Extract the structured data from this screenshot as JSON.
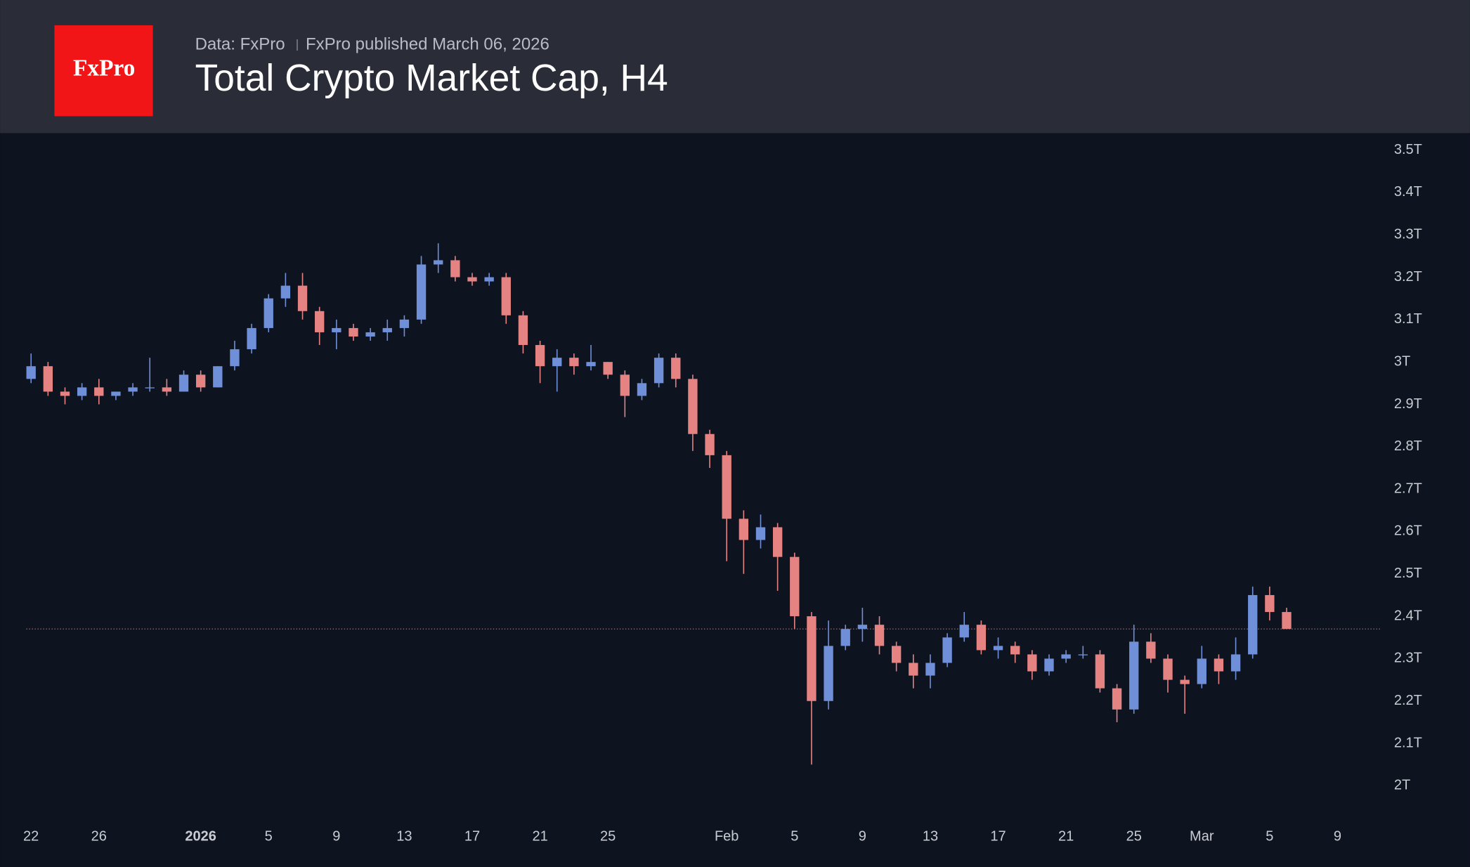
{
  "chart_data": {
    "type": "candlestick",
    "logo": "FxPro",
    "source": "Data: FxPro",
    "published": "FxPro published March 06, 2026",
    "title": "Total Crypto Market Cap, H4",
    "up_color": "#6f8fd8",
    "down_color": "#e58383",
    "price_line": 2.37,
    "ylim": [
      1.93,
      3.54
    ],
    "yticks": [
      {
        "value": 2,
        "label": "2T"
      },
      {
        "value": 2.1,
        "label": "2.1T"
      },
      {
        "value": 2.2,
        "label": "2.2T"
      },
      {
        "value": 2.3,
        "label": "2.3T"
      },
      {
        "value": 2.4,
        "label": "2.4T"
      },
      {
        "value": 2.5,
        "label": "2.5T"
      },
      {
        "value": 2.6,
        "label": "2.6T"
      },
      {
        "value": 2.7,
        "label": "2.7T"
      },
      {
        "value": 2.8,
        "label": "2.8T"
      },
      {
        "value": 2.9,
        "label": "2.9T"
      },
      {
        "value": 3,
        "label": "3T"
      },
      {
        "value": 3.1,
        "label": "3.1T"
      },
      {
        "value": 3.2,
        "label": "3.2T"
      },
      {
        "value": 3.3,
        "label": "3.3T"
      },
      {
        "value": 3.4,
        "label": "3.4T"
      },
      {
        "value": 3.5,
        "label": "3.5T"
      }
    ],
    "categories": [
      "22",
      null,
      null,
      null,
      "26",
      null,
      null,
      null,
      null,
      null,
      "2026",
      null,
      null,
      null,
      "5",
      null,
      null,
      null,
      "9",
      null,
      null,
      null,
      "13",
      null,
      null,
      null,
      "17",
      null,
      null,
      null,
      "21",
      null,
      null,
      null,
      "25",
      null,
      null,
      null,
      null,
      null,
      null,
      "Feb",
      null,
      null,
      null,
      "5",
      null,
      null,
      null,
      "9",
      null,
      null,
      null,
      "13",
      null,
      null,
      null,
      "17",
      null,
      null,
      null,
      "21",
      null,
      null,
      null,
      "25",
      null,
      null,
      null,
      "Mar",
      null,
      null,
      null,
      "5",
      null,
      null,
      null,
      "9"
    ],
    "open": [
      2.96,
      2.99,
      2.93,
      2.92,
      2.94,
      2.92,
      2.93,
      2.94,
      2.94,
      2.93,
      2.97,
      2.94,
      2.99,
      3.03,
      3.08,
      3.15,
      3.18,
      3.12,
      3.07,
      3.08,
      3.06,
      3.07,
      3.08,
      3.1,
      3.23,
      3.24,
      3.2,
      3.19,
      3.2,
      3.11,
      3.04,
      2.99,
      3.01,
      2.99,
      3.0,
      2.97,
      2.92,
      2.95,
      3.01,
      2.96,
      2.83,
      2.78,
      2.63,
      2.58,
      2.61,
      2.54,
      2.4,
      2.2,
      2.33,
      2.37,
      2.38,
      2.33,
      2.29,
      2.26,
      2.29,
      2.35,
      2.38,
      2.32,
      2.33,
      2.31,
      2.27,
      2.3,
      2.31,
      2.31,
      2.23,
      2.18,
      2.34,
      2.3,
      2.25,
      2.24,
      2.3,
      2.27,
      2.31,
      2.45,
      2.41,
      null,
      null,
      null
    ],
    "high": [
      3.02,
      3.0,
      2.94,
      2.95,
      2.96,
      2.93,
      2.95,
      3.01,
      2.96,
      2.98,
      2.98,
      2.99,
      3.05,
      3.09,
      3.16,
      3.21,
      3.21,
      3.13,
      3.1,
      3.09,
      3.08,
      3.1,
      3.11,
      3.25,
      3.28,
      3.25,
      3.21,
      3.21,
      3.21,
      3.12,
      3.05,
      3.03,
      3.02,
      3.04,
      3.0,
      2.98,
      2.96,
      3.02,
      3.02,
      2.97,
      2.84,
      2.79,
      2.65,
      2.64,
      2.62,
      2.55,
      2.41,
      2.39,
      2.38,
      2.42,
      2.4,
      2.34,
      2.31,
      2.31,
      2.36,
      2.41,
      2.39,
      2.35,
      2.34,
      2.32,
      2.31,
      2.32,
      2.33,
      2.32,
      2.24,
      2.38,
      2.36,
      2.31,
      2.26,
      2.33,
      2.31,
      2.35,
      2.47,
      2.47,
      2.42,
      null,
      null,
      null
    ],
    "low": [
      2.95,
      2.92,
      2.9,
      2.91,
      2.9,
      2.91,
      2.92,
      2.93,
      2.92,
      2.93,
      2.93,
      2.94,
      2.98,
      3.02,
      3.07,
      3.13,
      3.1,
      3.04,
      3.03,
      3.05,
      3.05,
      3.05,
      3.06,
      3.09,
      3.21,
      3.19,
      3.18,
      3.18,
      3.09,
      3.02,
      2.95,
      2.93,
      2.97,
      2.98,
      2.96,
      2.87,
      2.91,
      2.94,
      2.94,
      2.79,
      2.75,
      2.53,
      2.5,
      2.56,
      2.46,
      2.37,
      2.05,
      2.18,
      2.32,
      2.34,
      2.31,
      2.27,
      2.23,
      2.23,
      2.28,
      2.34,
      2.31,
      2.3,
      2.29,
      2.25,
      2.26,
      2.29,
      2.3,
      2.22,
      2.15,
      2.17,
      2.29,
      2.22,
      2.17,
      2.23,
      2.24,
      2.25,
      2.3,
      2.39,
      2.37,
      null,
      null,
      null
    ],
    "close": [
      2.99,
      2.93,
      2.92,
      2.94,
      2.92,
      2.93,
      2.94,
      2.94,
      2.93,
      2.97,
      2.94,
      2.99,
      3.03,
      3.08,
      3.15,
      3.18,
      3.12,
      3.07,
      3.08,
      3.06,
      3.07,
      3.08,
      3.1,
      3.23,
      3.24,
      3.2,
      3.19,
      3.2,
      3.11,
      3.04,
      2.99,
      3.01,
      2.99,
      3.0,
      2.97,
      2.92,
      2.95,
      3.01,
      2.96,
      2.83,
      2.78,
      2.63,
      2.58,
      2.61,
      2.54,
      2.4,
      2.2,
      2.33,
      2.37,
      2.38,
      2.33,
      2.29,
      2.26,
      2.29,
      2.35,
      2.38,
      2.32,
      2.33,
      2.31,
      2.27,
      2.3,
      2.31,
      2.31,
      2.23,
      2.18,
      2.34,
      2.3,
      2.25,
      2.24,
      2.3,
      2.27,
      2.31,
      2.45,
      2.41,
      2.37,
      null,
      null,
      null
    ]
  }
}
